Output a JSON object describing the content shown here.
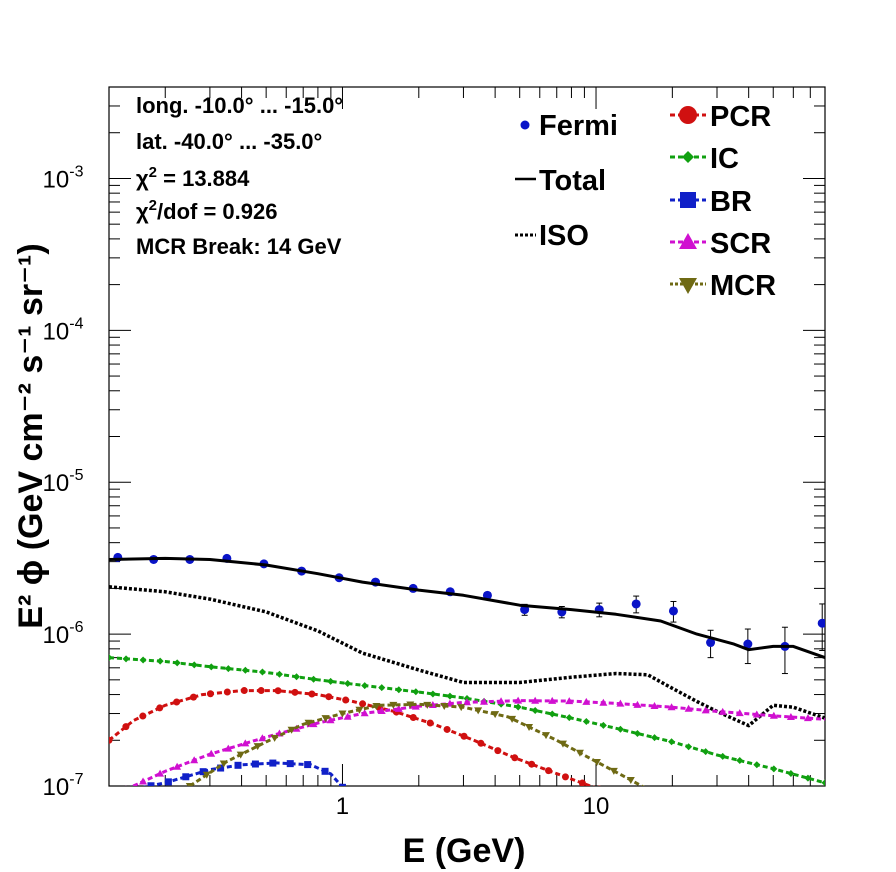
{
  "chart_data": {
    "type": "line",
    "log_x": true,
    "log_y": true,
    "xlabel": "E (GeV)",
    "ylabel": "E² ϕ (GeV cm⁻² s⁻¹ sr⁻¹)",
    "xlim": [
      0.12,
      80
    ],
    "ylim": [
      1e-07,
      0.004
    ],
    "x_ticks": [
      {
        "value": 1,
        "label": "1"
      },
      {
        "value": 10,
        "label": "10"
      }
    ],
    "y_ticks": [
      {
        "value": 1e-07,
        "base": "10",
        "exp": "-7"
      },
      {
        "value": 1e-06,
        "base": "10",
        "exp": "-6"
      },
      {
        "value": 1e-05,
        "base": "10",
        "exp": "-5"
      },
      {
        "value": 0.0001,
        "base": "10",
        "exp": "-4"
      },
      {
        "value": 0.001,
        "base": "10",
        "exp": "-3"
      }
    ],
    "info_text": {
      "line1": "long. -10.0° ... -15.0°",
      "line2": "lat. -40.0° ... -35.0°",
      "line3_symbol": "χ",
      "line3_exp": "2",
      "line3_rest": " = 13.884",
      "line4_symbol": "χ",
      "line4_exp": "2",
      "line4_rest": "/dof = 0.926",
      "line5": "MCR Break: 14 GeV"
    },
    "legend": {
      "fermi": "Fermi",
      "total": "Total",
      "iso": "ISO",
      "pcr": "PCR",
      "ic": "IC",
      "br": "BR",
      "scr": "SCR",
      "mcr": "MCR"
    },
    "series": [
      {
        "name": "Fermi",
        "style": "points",
        "color": "#0a14c8",
        "x": [
          0.13,
          0.18,
          0.25,
          0.35,
          0.49,
          0.69,
          0.97,
          1.35,
          1.9,
          2.66,
          3.73,
          5.23,
          7.33,
          10.3,
          14.4,
          20.2,
          28.3,
          39.7,
          55.6,
          78.0
        ],
        "y": [
          3.2e-06,
          3.1e-06,
          3.1e-06,
          3.15e-06,
          2.9e-06,
          2.6e-06,
          2.35e-06,
          2.2e-06,
          2e-06,
          1.9e-06,
          1.8e-06,
          1.45e-06,
          1.4e-06,
          1.45e-06,
          1.58e-06,
          1.42e-06,
          8.8e-07,
          8.6e-07,
          8.3e-07,
          1.18e-06
        ],
        "err": [
          0,
          0,
          0,
          0,
          0,
          0,
          0,
          0,
          0,
          0,
          0,
          1.2e-07,
          1.2e-07,
          1.5e-07,
          2e-07,
          2.2e-07,
          1.8e-07,
          2.2e-07,
          2.8e-07,
          4e-07
        ]
      },
      {
        "name": "Total",
        "style": "solid",
        "color": "#000000",
        "x": [
          0.12,
          0.2,
          0.3,
          0.5,
          0.8,
          1.2,
          2,
          3,
          5,
          8,
          12,
          18,
          25,
          35,
          40,
          50,
          60,
          80
        ],
        "y": [
          3.1e-06,
          3.15e-06,
          3.1e-06,
          2.85e-06,
          2.5e-06,
          2.2e-06,
          1.95e-06,
          1.8e-06,
          1.55e-06,
          1.45e-06,
          1.35e-06,
          1.22e-06,
          1e-06,
          8.6e-07,
          7.9e-07,
          8.3e-07,
          8.3e-07,
          7e-07
        ]
      },
      {
        "name": "ISO",
        "style": "dotted",
        "color": "#000000",
        "x": [
          0.12,
          0.2,
          0.3,
          0.5,
          0.8,
          1.2,
          2,
          3,
          5,
          8,
          12,
          16,
          20,
          25,
          30,
          40,
          50,
          60,
          80
        ],
        "y": [
          2.05e-06,
          1.9e-06,
          1.7e-06,
          1.4e-06,
          1.05e-06,
          7.5e-07,
          5.8e-07,
          4.8e-07,
          4.8e-07,
          5.2e-07,
          5.5e-07,
          5.4e-07,
          4.4e-07,
          3.6e-07,
          3.1e-07,
          2.5e-07,
          3.4e-07,
          3.3e-07,
          2.8e-07
        ]
      },
      {
        "name": "PCR",
        "style": "dash-marker",
        "marker": "circle",
        "color": "#d01010",
        "x": [
          0.12,
          0.15,
          0.2,
          0.28,
          0.4,
          0.55,
          0.8,
          1.1,
          1.6,
          2.3,
          3.3,
          4.7,
          6.6,
          9.5,
          14
        ],
        "y": [
          2e-07,
          2.7e-07,
          3.4e-07,
          4e-07,
          4.25e-07,
          4.25e-07,
          4e-07,
          3.6e-07,
          3.1e-07,
          2.55e-07,
          2e-07,
          1.55e-07,
          1.25e-07,
          1e-07,
          8e-08
        ]
      },
      {
        "name": "IC",
        "style": "dash-marker",
        "marker": "diamond",
        "color": "#10a010",
        "x": [
          0.12,
          0.2,
          0.3,
          0.5,
          0.8,
          1.2,
          2,
          3,
          5,
          8,
          12,
          20,
          30,
          50,
          80
        ],
        "y": [
          7e-07,
          6.6e-07,
          6.1e-07,
          5.6e-07,
          5e-07,
          4.6e-07,
          4.15e-07,
          3.8e-07,
          3.3e-07,
          2.8e-07,
          2.4e-07,
          1.95e-07,
          1.6e-07,
          1.3e-07,
          1.05e-07
        ]
      },
      {
        "name": "BR",
        "style": "dash-marker",
        "marker": "square",
        "color": "#1020c8",
        "x": [
          0.15,
          0.2,
          0.3,
          0.4,
          0.55,
          0.75,
          0.9,
          1.0
        ],
        "y": [
          9.5e-08,
          1.05e-07,
          1.28e-07,
          1.38e-07,
          1.42e-07,
          1.38e-07,
          1.2e-07,
          9.8e-08
        ]
      },
      {
        "name": "SCR",
        "style": "dash-marker",
        "marker": "triangle-up",
        "color": "#d010d0",
        "x": [
          0.14,
          0.2,
          0.3,
          0.5,
          0.8,
          1.2,
          2,
          3,
          5,
          8,
          12,
          20,
          30,
          50,
          80
        ],
        "y": [
          9.5e-08,
          1.25e-07,
          1.62e-07,
          2.1e-07,
          2.6e-07,
          3e-07,
          3.35e-07,
          3.55e-07,
          3.65e-07,
          3.62e-07,
          3.5e-07,
          3.3e-07,
          3.1e-07,
          2.9e-07,
          2.75e-07
        ]
      },
      {
        "name": "MCR",
        "style": "dash-marker",
        "marker": "triangle-down",
        "color": "#6f6a14",
        "x": [
          0.25,
          0.35,
          0.5,
          0.7,
          1.0,
          1.4,
          2.0,
          3.0,
          4.5,
          7,
          10,
          13,
          16
        ],
        "y": [
          1e-07,
          1.45e-07,
          1.95e-07,
          2.55e-07,
          3e-07,
          3.4e-07,
          3.45e-07,
          3.3e-07,
          2.85e-07,
          2e-07,
          1.45e-07,
          1.15e-07,
          9.5e-08
        ]
      }
    ]
  }
}
